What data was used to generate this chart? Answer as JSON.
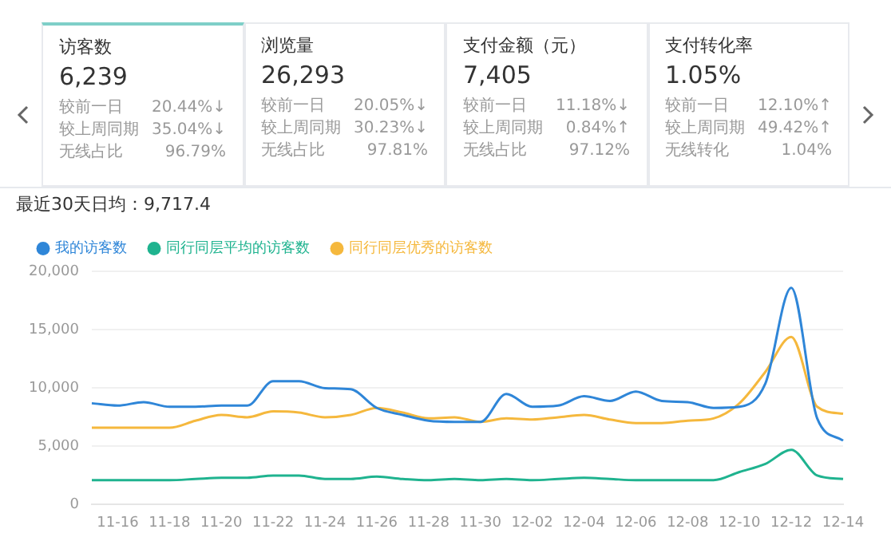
{
  "chart_data": [
    {
      "type": "other",
      "annotations": [
        "访客数",
        "6,239",
        "较前一日",
        "20.44%↓",
        "较上周同期",
        "35.04%↓",
        "无线占比",
        "96.79%",
        "浏览量",
        "26,293",
        "较前一日",
        "20.05%↓",
        "较上周同期",
        "30.23%↓",
        "无线占比",
        "97.81%",
        "支付金额（元）",
        "7,405",
        "较前一日",
        "11.18%↓",
        "较上周同期",
        "0.84%↑",
        "无线占比",
        "97.12%",
        "支付转化率",
        "1.05%",
        "较前一日",
        "12.10%↑",
        "较上周同期",
        "49.42%↑",
        "无线转化",
        "1.04%"
      ]
    },
    {
      "type": "line",
      "title": "最近30天日均：9,717.4",
      "categories": [
        null,
        "11-16",
        null,
        "11-18",
        null,
        "11-20",
        null,
        "11-22",
        null,
        "11-24",
        null,
        "11-26",
        null,
        "11-28",
        null,
        "11-30",
        null,
        "12-02",
        null,
        "12-04",
        null,
        "12-06",
        null,
        "12-08",
        null,
        "12-10",
        null,
        "12-12",
        null,
        "12-14"
      ],
      "series": [
        {
          "name": "我的访客数",
          "color": "#2f86d8",
          "values": [
            8700,
            8500,
            8800,
            8400,
            8400,
            8500,
            8500,
            10600,
            10600,
            10000,
            9900,
            8300,
            7700,
            7200,
            7100,
            7100,
            9500,
            8400,
            8500,
            9300,
            8900,
            9700,
            8900,
            8800,
            8300,
            8400,
            10400,
            18600,
            7400,
            5500
          ]
        },
        {
          "name": "同行同层平均的访客数",
          "color": "#1fb38f",
          "values": [
            2100,
            2100,
            2100,
            2100,
            2200,
            2300,
            2300,
            2500,
            2500,
            2200,
            2200,
            2400,
            2200,
            2100,
            2200,
            2100,
            2200,
            2100,
            2200,
            2300,
            2200,
            2100,
            2100,
            2100,
            2100,
            2800,
            3500,
            4700,
            2500,
            2200
          ]
        },
        {
          "name": "同行同层优秀的访客数",
          "color": "#f5b83d",
          "values": [
            6600,
            6600,
            6600,
            6600,
            7200,
            7700,
            7500,
            8000,
            7900,
            7500,
            7700,
            8300,
            7900,
            7400,
            7500,
            7100,
            7400,
            7300,
            7500,
            7700,
            7300,
            7000,
            7000,
            7200,
            7400,
            8700,
            11400,
            14400,
            8400,
            7800
          ]
        }
      ],
      "ylim": [
        0,
        20000
      ],
      "yticks": [
        0,
        {
          "value": 5000,
          "label": "5,000"
        },
        {
          "value": 10000,
          "label": "10,000"
        },
        {
          "value": 15000,
          "label": "15,000"
        },
        {
          "value": 20000,
          "label": "20,000"
        }
      ],
      "grid": "y",
      "legend": "top left"
    }
  ]
}
